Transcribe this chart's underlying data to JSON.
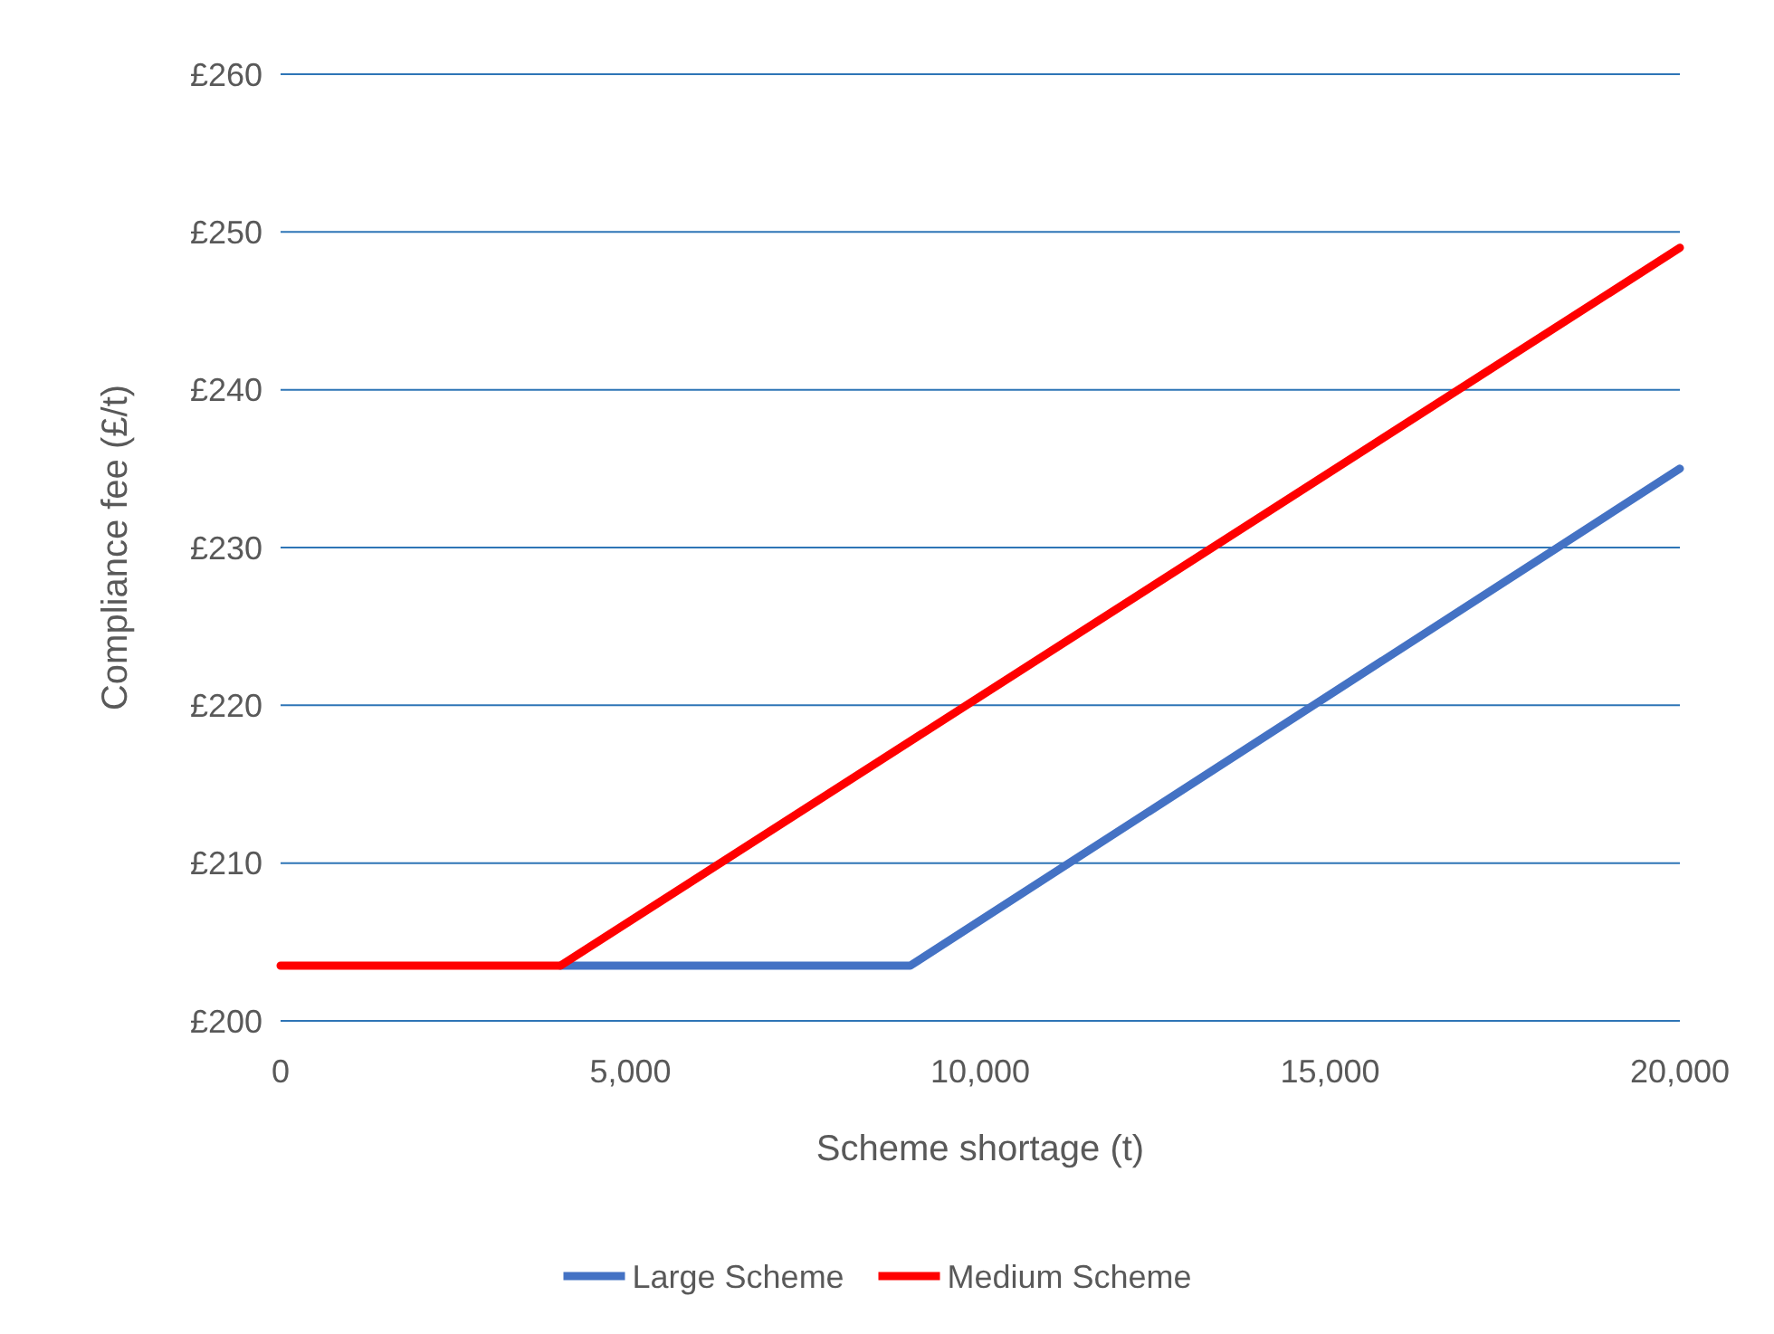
{
  "chart_data": {
    "type": "line",
    "xlabel": "Scheme shortage (t)",
    "ylabel": "Compliance fee (£/t)",
    "series": [
      {
        "name": "Large Scheme",
        "color": "#4472c4",
        "x": [
          4000,
          9000,
          20000
        ],
        "values": [
          203.5,
          203.5,
          235
        ]
      },
      {
        "name": "Medium Scheme",
        "color": "#ff0000",
        "x": [
          0,
          4000,
          20000
        ],
        "values": [
          203.5,
          203.5,
          249
        ]
      }
    ],
    "xlim": [
      0,
      20000
    ],
    "xticks": [
      0,
      {
        "value": 5000,
        "label": "5,000"
      },
      {
        "value": 10000,
        "label": "10,000"
      },
      {
        "value": 15000,
        "label": "15,000"
      },
      {
        "value": 20000,
        "label": "20,000"
      }
    ],
    "ylim": [
      200,
      260
    ],
    "yticks": [
      {
        "value": 200,
        "label": "£200"
      },
      {
        "value": 210,
        "label": "£210"
      },
      {
        "value": 220,
        "label": "£220"
      },
      {
        "value": 230,
        "label": "£230"
      },
      {
        "value": 240,
        "label": "£240"
      },
      {
        "value": 250,
        "label": "£250"
      },
      {
        "value": 260,
        "label": "£260"
      }
    ],
    "grid": "y",
    "legend": "bottom",
    "marker": "none",
    "line_style": "solid"
  }
}
